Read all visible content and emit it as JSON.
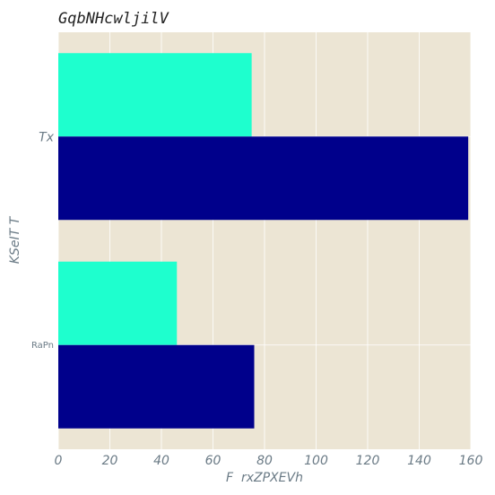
{
  "chart_data": {
    "type": "bar",
    "orientation": "horizontal",
    "title": "GqbNHcwljilV",
    "xlabel": "F  rxZPXEVh",
    "ylabel": "KSeIT T",
    "categories": [
      "RaPn",
      "Tx"
    ],
    "series": [
      {
        "color": "#1effce",
        "values": [
          46,
          75
        ]
      },
      {
        "color": "#00008b",
        "values": [
          76,
          159
        ]
      }
    ],
    "xlim": [
      0,
      160
    ],
    "xticks": [
      "0",
      "20",
      "40",
      "60",
      "80",
      "100",
      "120",
      "140",
      "160"
    ],
    "grid": true,
    "background": "#ece5d4"
  }
}
